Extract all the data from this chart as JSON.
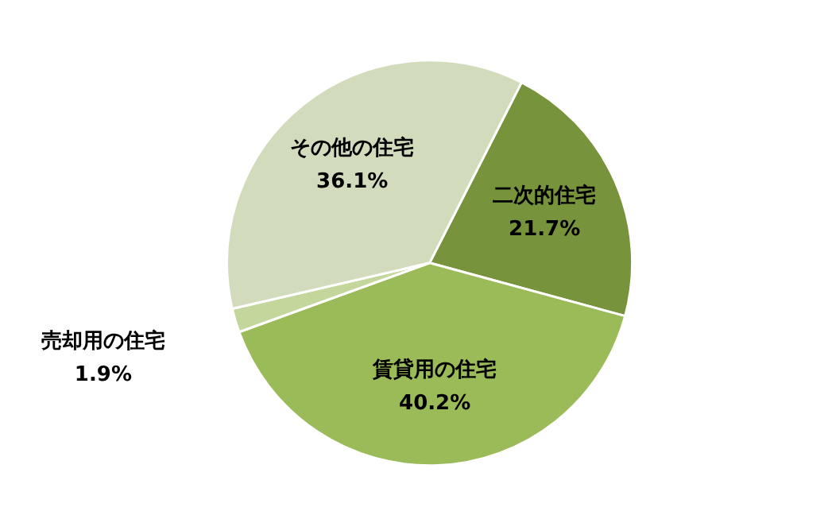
{
  "chart_data": {
    "type": "pie",
    "categories": [
      "二次的住宅",
      "賃貸用の住宅",
      "売却用の住宅",
      "その他の住宅"
    ],
    "values": [
      21.7,
      40.2,
      1.9,
      36.1
    ],
    "colors": [
      "#77933c",
      "#9bbb59",
      "#c3d69b",
      "#d2dcbc"
    ],
    "value_labels": [
      "21.7%",
      "40.2%",
      "1.9%",
      "36.1%"
    ]
  }
}
